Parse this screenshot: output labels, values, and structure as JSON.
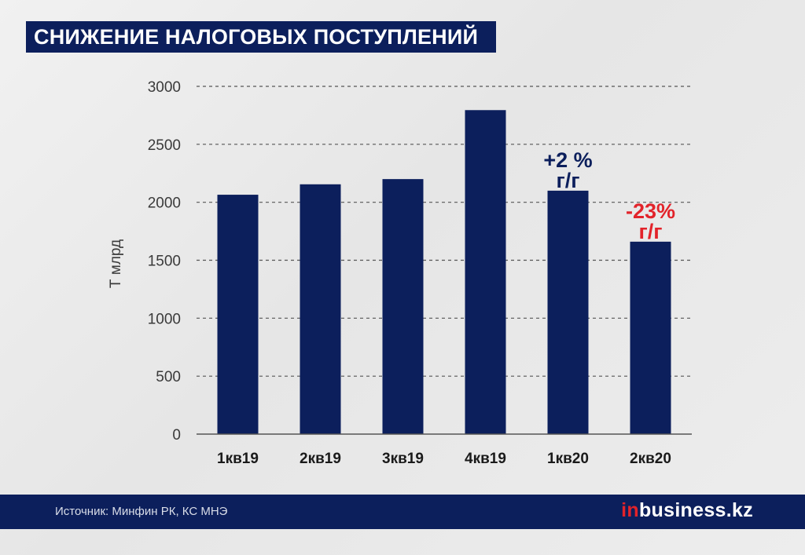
{
  "title": "СНИЖЕНИЕ НАЛОГОВЫХ ПОСТУПЛЕНИЙ",
  "footer": {
    "source": "Источник: Минфин РК, КС МНЭ",
    "logo_prefix": "in",
    "logo_rest": "business.kz"
  },
  "colors": {
    "bar": "#0c1f5c",
    "positive_annotation": "#0c1f5c",
    "negative_annotation": "#e2232a",
    "grid": "#555555"
  },
  "chart_data": {
    "type": "bar",
    "categories": [
      "1кв19",
      "2кв19",
      "3кв19",
      "4кв19",
      "1кв20",
      "2кв20"
    ],
    "values": [
      2065,
      2155,
      2200,
      2795,
      2100,
      1660
    ],
    "ylabel": "Т млрд",
    "ylim": [
      0,
      3000
    ],
    "yticks": [
      0,
      500,
      1000,
      1500,
      2000,
      2500,
      3000
    ],
    "grid": true,
    "annotations": [
      {
        "category": "1кв20",
        "line1": "+2 %",
        "line2": "г/г",
        "tone": "positive"
      },
      {
        "category": "2кв20",
        "line1": "-23%",
        "line2": "г/г",
        "tone": "negative"
      }
    ]
  }
}
